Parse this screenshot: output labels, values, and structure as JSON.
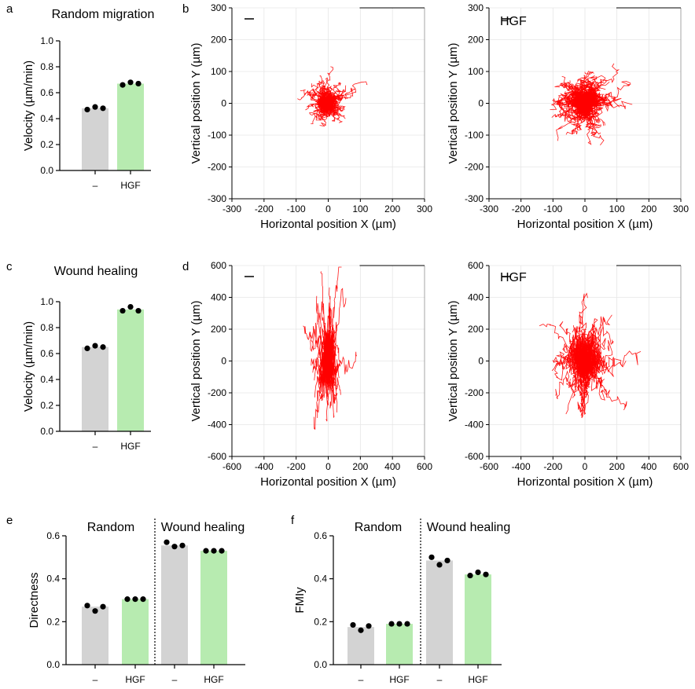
{
  "chart_data": [
    {
      "id": "a",
      "type": "bar",
      "panel_letter": "a",
      "title": "Random migration",
      "categories": [
        "–",
        "HGF"
      ],
      "values": [
        0.48,
        0.67
      ],
      "points": [
        [
          0.47,
          0.49,
          0.48
        ],
        [
          0.66,
          0.68,
          0.67
        ]
      ],
      "colors": [
        "#d3d3d3",
        "#b7ebb0"
      ],
      "ylabel": "Velocity (µm/min)",
      "ylim": [
        0,
        1.0
      ],
      "yticks": [
        0,
        0.2,
        0.4,
        0.6,
        0.8,
        1.0
      ],
      "ytick_labels": [
        "0.0",
        "0.2",
        "0.4",
        "0.6",
        "0.8",
        "1.0"
      ]
    },
    {
      "id": "b1",
      "type": "line",
      "panel_letter": "b",
      "label": "",
      "xlabel": "Horizontal position X (µm)",
      "ylabel": "Vertical position Y (µm)",
      "xlim": [
        -300,
        300
      ],
      "ylim": [
        -300,
        300
      ],
      "xticks": [
        -300,
        -200,
        -100,
        0,
        100,
        200,
        300
      ],
      "yticks": [
        -300,
        -200,
        -100,
        0,
        100,
        200,
        300
      ],
      "ytick_labels": [
        "-300",
        "-200",
        "-100",
        "0",
        "100",
        "200",
        "300"
      ],
      "n_tracks": 110,
      "spread_x": 95,
      "spread_y": 105,
      "bias_x": 1,
      "bias_y": 1,
      "step_min": 22,
      "step_max": 34,
      "seed": 11,
      "track_color": "#ff0000"
    },
    {
      "id": "b2",
      "type": "line",
      "panel_letter": "",
      "label": "HGF",
      "xlabel": "Horizontal position X (µm)",
      "ylabel": "Vertical position Y (µm)",
      "xlim": [
        -300,
        300
      ],
      "ylim": [
        -300,
        300
      ],
      "xticks": [
        -300,
        -200,
        -100,
        0,
        100,
        200,
        300
      ],
      "yticks": [
        -300,
        -200,
        -100,
        0,
        100,
        200,
        300
      ],
      "ytick_labels": [
        "-300",
        "-200",
        "-100",
        "0",
        "100",
        "200",
        "300"
      ],
      "n_tracks": 130,
      "spread_x": 140,
      "spread_y": 140,
      "bias_x": 1,
      "bias_y": 1,
      "step_min": 26,
      "step_max": 40,
      "seed": 23,
      "track_color": "#ff0000"
    },
    {
      "id": "c",
      "type": "bar",
      "panel_letter": "c",
      "title": "Wound healing",
      "categories": [
        "–",
        "HGF"
      ],
      "values": [
        0.65,
        0.94
      ],
      "points": [
        [
          0.64,
          0.66,
          0.65
        ],
        [
          0.93,
          0.96,
          0.93
        ]
      ],
      "colors": [
        "#d3d3d3",
        "#b7ebb0"
      ],
      "ylabel": "Velocity (µm/min)",
      "ylim": [
        0,
        1.0
      ],
      "yticks": [
        0,
        0.2,
        0.4,
        0.6,
        0.8,
        1.0
      ],
      "ytick_labels": [
        "0.0",
        "0.2",
        "0.4",
        "0.6",
        "0.8",
        "1.0"
      ]
    },
    {
      "id": "d1",
      "type": "line",
      "panel_letter": "d",
      "label": "",
      "xlabel": "Horizontal position X (µm)",
      "ylabel": "Vertical position Y (µm)",
      "xlim": [
        -600,
        600
      ],
      "ylim": [
        -600,
        600
      ],
      "xticks": [
        -600,
        -400,
        -200,
        0,
        200,
        400,
        600
      ],
      "yticks": [
        -600,
        -400,
        -200,
        0,
        200,
        400,
        600
      ],
      "ytick_labels": [
        "-600",
        "-400",
        "-200",
        "0",
        "200",
        "400",
        "600"
      ],
      "n_tracks": 110,
      "spread_x": 140,
      "spread_y": 420,
      "bias_x": 0.35,
      "bias_y": 1.6,
      "step_min": 22,
      "step_max": 38,
      "seed": 37,
      "track_color": "#ff0000"
    },
    {
      "id": "d2",
      "type": "line",
      "panel_letter": "",
      "label": "HGF",
      "xlabel": "Horizontal position X (µm)",
      "ylabel": "Vertical position Y (µm)",
      "xlim": [
        -600,
        600
      ],
      "ylim": [
        -600,
        600
      ],
      "xticks": [
        -600,
        -400,
        -200,
        0,
        200,
        400,
        600
      ],
      "yticks": [
        -600,
        -400,
        -200,
        0,
        200,
        400,
        600
      ],
      "ytick_labels": [
        "-600",
        "-400",
        "-200",
        "0",
        "200",
        "400",
        "600"
      ],
      "n_tracks": 110,
      "spread_x": 300,
      "spread_y": 400,
      "bias_x": 0.6,
      "bias_y": 1.5,
      "step_min": 24,
      "step_max": 40,
      "seed": 51,
      "track_color": "#ff0000"
    },
    {
      "id": "e",
      "type": "bar",
      "panel_letter": "e",
      "group_labels": [
        "Random",
        "Wound healing"
      ],
      "categories": [
        "–",
        "HGF",
        "–",
        "HGF"
      ],
      "values": [
        0.27,
        0.305,
        0.555,
        0.53
      ],
      "points": [
        [
          0.275,
          0.25,
          0.27
        ],
        [
          0.305,
          0.305,
          0.305
        ],
        [
          0.57,
          0.55,
          0.555
        ],
        [
          0.53,
          0.53,
          0.53
        ]
      ],
      "colors": [
        "#d3d3d3",
        "#b7ebb0",
        "#d3d3d3",
        "#b7ebb0"
      ],
      "ylabel": "Directness",
      "ylim": [
        0,
        0.6
      ],
      "yticks": [
        0,
        0.2,
        0.4,
        0.6
      ],
      "ytick_labels": [
        "0.0",
        "0.2",
        "0.4",
        "0.6"
      ]
    },
    {
      "id": "f",
      "type": "bar",
      "panel_letter": "f",
      "group_labels": [
        "Random",
        "Wound healing"
      ],
      "categories": [
        "–",
        "HGF",
        "–",
        "HGF"
      ],
      "values": [
        0.175,
        0.19,
        0.485,
        0.42
      ],
      "points": [
        [
          0.185,
          0.16,
          0.18
        ],
        [
          0.19,
          0.19,
          0.19
        ],
        [
          0.5,
          0.465,
          0.485
        ],
        [
          0.415,
          0.43,
          0.42
        ]
      ],
      "colors": [
        "#d3d3d3",
        "#b7ebb0",
        "#d3d3d3",
        "#b7ebb0"
      ],
      "ylabel": "FMIy",
      "ylim": [
        0,
        0.6
      ],
      "yticks": [
        0,
        0.2,
        0.4,
        0.6
      ],
      "ytick_labels": [
        "0.0",
        "0.2",
        "0.4",
        "0.6"
      ]
    }
  ]
}
